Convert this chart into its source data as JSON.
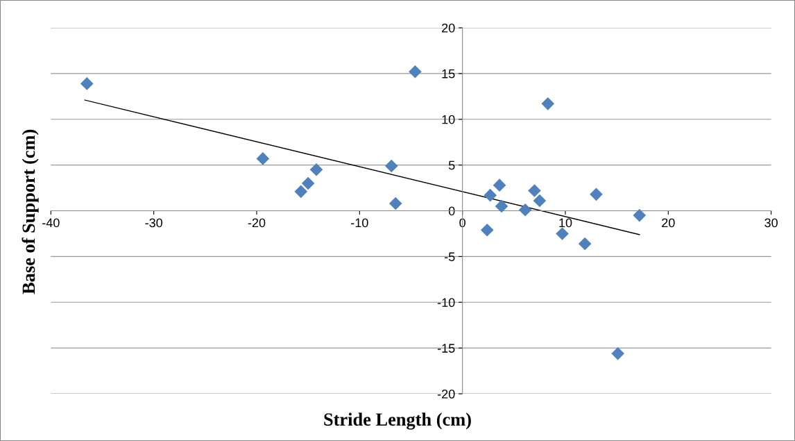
{
  "chart_data": {
    "type": "scatter",
    "xlabel": "Stride Length (cm)",
    "ylabel": "Base of Support (cm)",
    "xlim": [
      -40,
      30
    ],
    "xticks": [
      -40,
      -30,
      -20,
      -10,
      0,
      10,
      20,
      30
    ],
    "ylim": [
      -20,
      20
    ],
    "yticks": [
      -20,
      -15,
      -10,
      -5,
      0,
      5,
      10,
      15,
      20
    ],
    "grid": "y",
    "series": [
      {
        "marker": "diamond",
        "color": "#4f81bd",
        "x": [
          -36.5,
          -19.4,
          -15.7,
          -15.0,
          -14.2,
          -6.9,
          -6.5,
          -4.6,
          2.4,
          2.7,
          3.6,
          3.8,
          6.1,
          7.0,
          7.5,
          8.3,
          9.7,
          11.9,
          13.0,
          15.1,
          17.2
        ],
        "values": [
          13.9,
          5.7,
          2.1,
          3.0,
          4.5,
          4.9,
          0.8,
          15.2,
          -2.1,
          1.7,
          2.8,
          0.5,
          0.1,
          2.2,
          1.1,
          11.7,
          -2.5,
          -3.6,
          1.8,
          -15.6,
          -0.5
        ]
      },
      {
        "type": "line",
        "marker": "none",
        "color": "#000000",
        "x": [
          -36.7,
          17.2
        ],
        "values": [
          12.1,
          -2.6
        ]
      }
    ]
  }
}
